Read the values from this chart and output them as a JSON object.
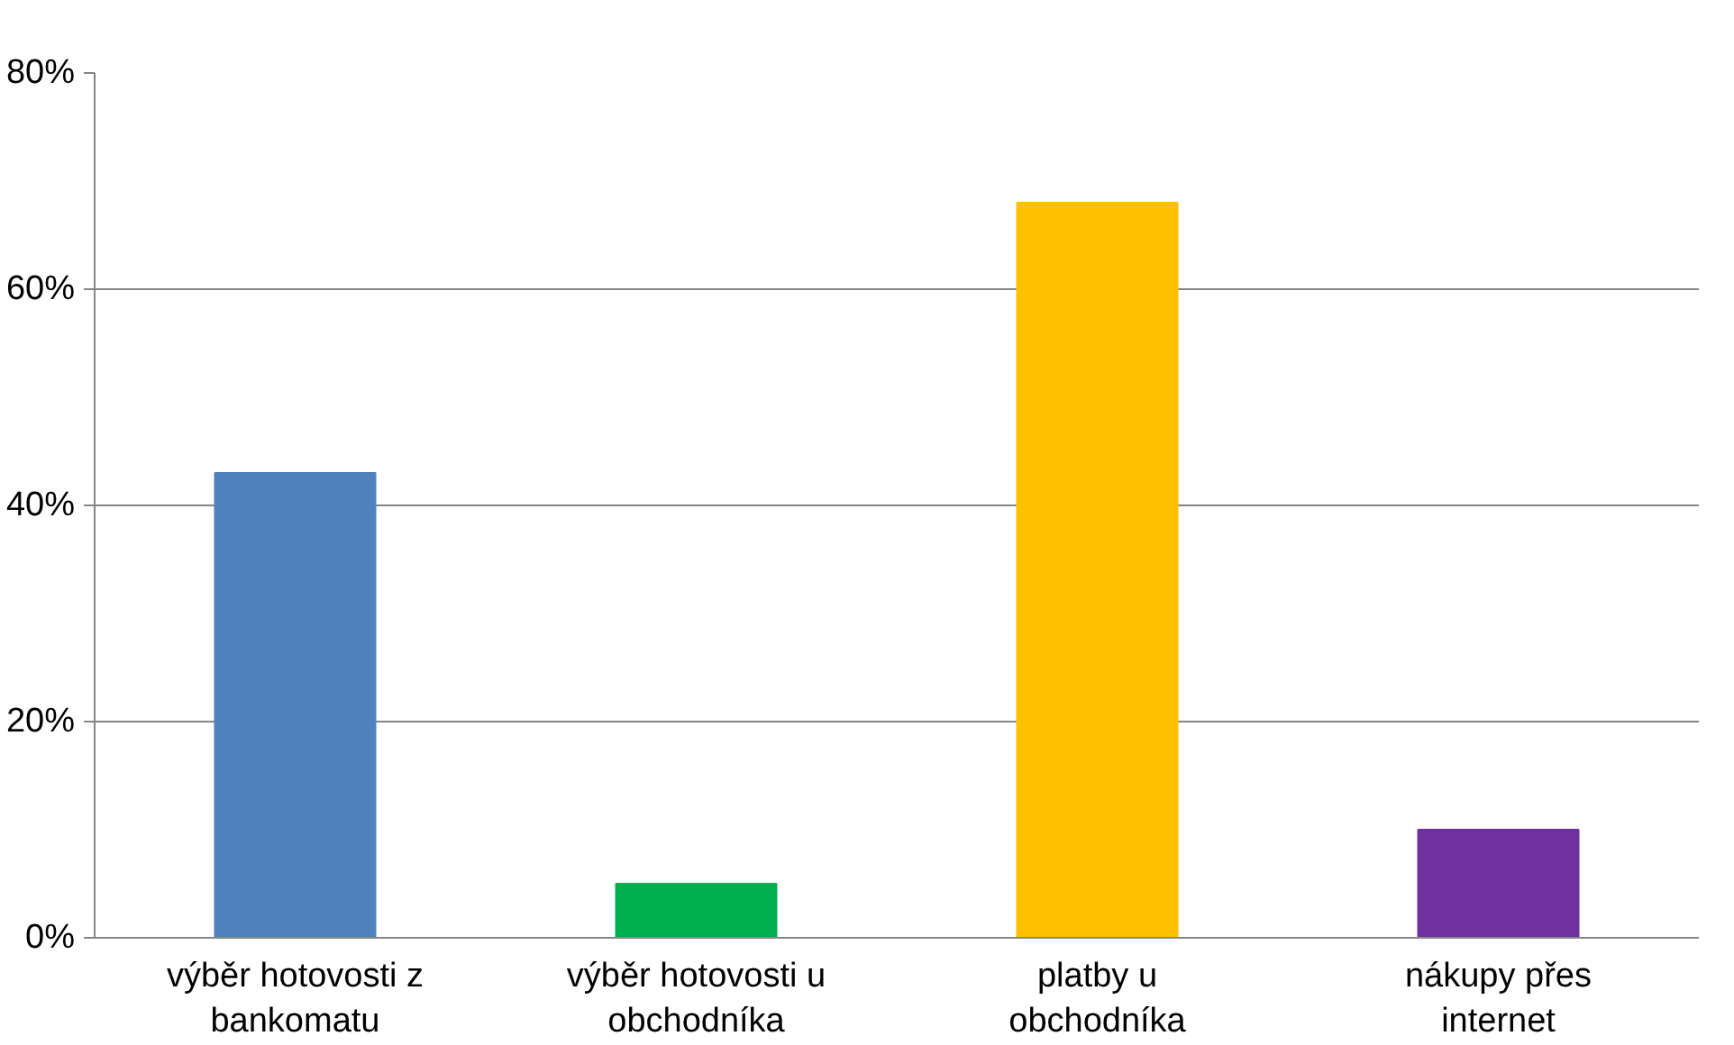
{
  "chart_data": {
    "type": "bar",
    "categories": [
      "výběr hotovosti z bankomatu",
      "výběr hotovosti u obchodníka",
      "platby u obchodníka",
      "nákupy přes internet"
    ],
    "values": [
      43,
      5,
      68,
      10
    ],
    "colors": [
      "#4f81bd",
      "#00b050",
      "#ffc000",
      "#7030a0"
    ],
    "ylim": [
      0,
      80
    ],
    "yticks": [
      {
        "value": 0,
        "label": "0%"
      },
      {
        "value": 20,
        "label": "20%"
      },
      {
        "value": 40,
        "label": "40%"
      },
      {
        "value": 60,
        "label": "60%"
      },
      {
        "value": 80,
        "label": "80%"
      }
    ],
    "grid": "y"
  }
}
